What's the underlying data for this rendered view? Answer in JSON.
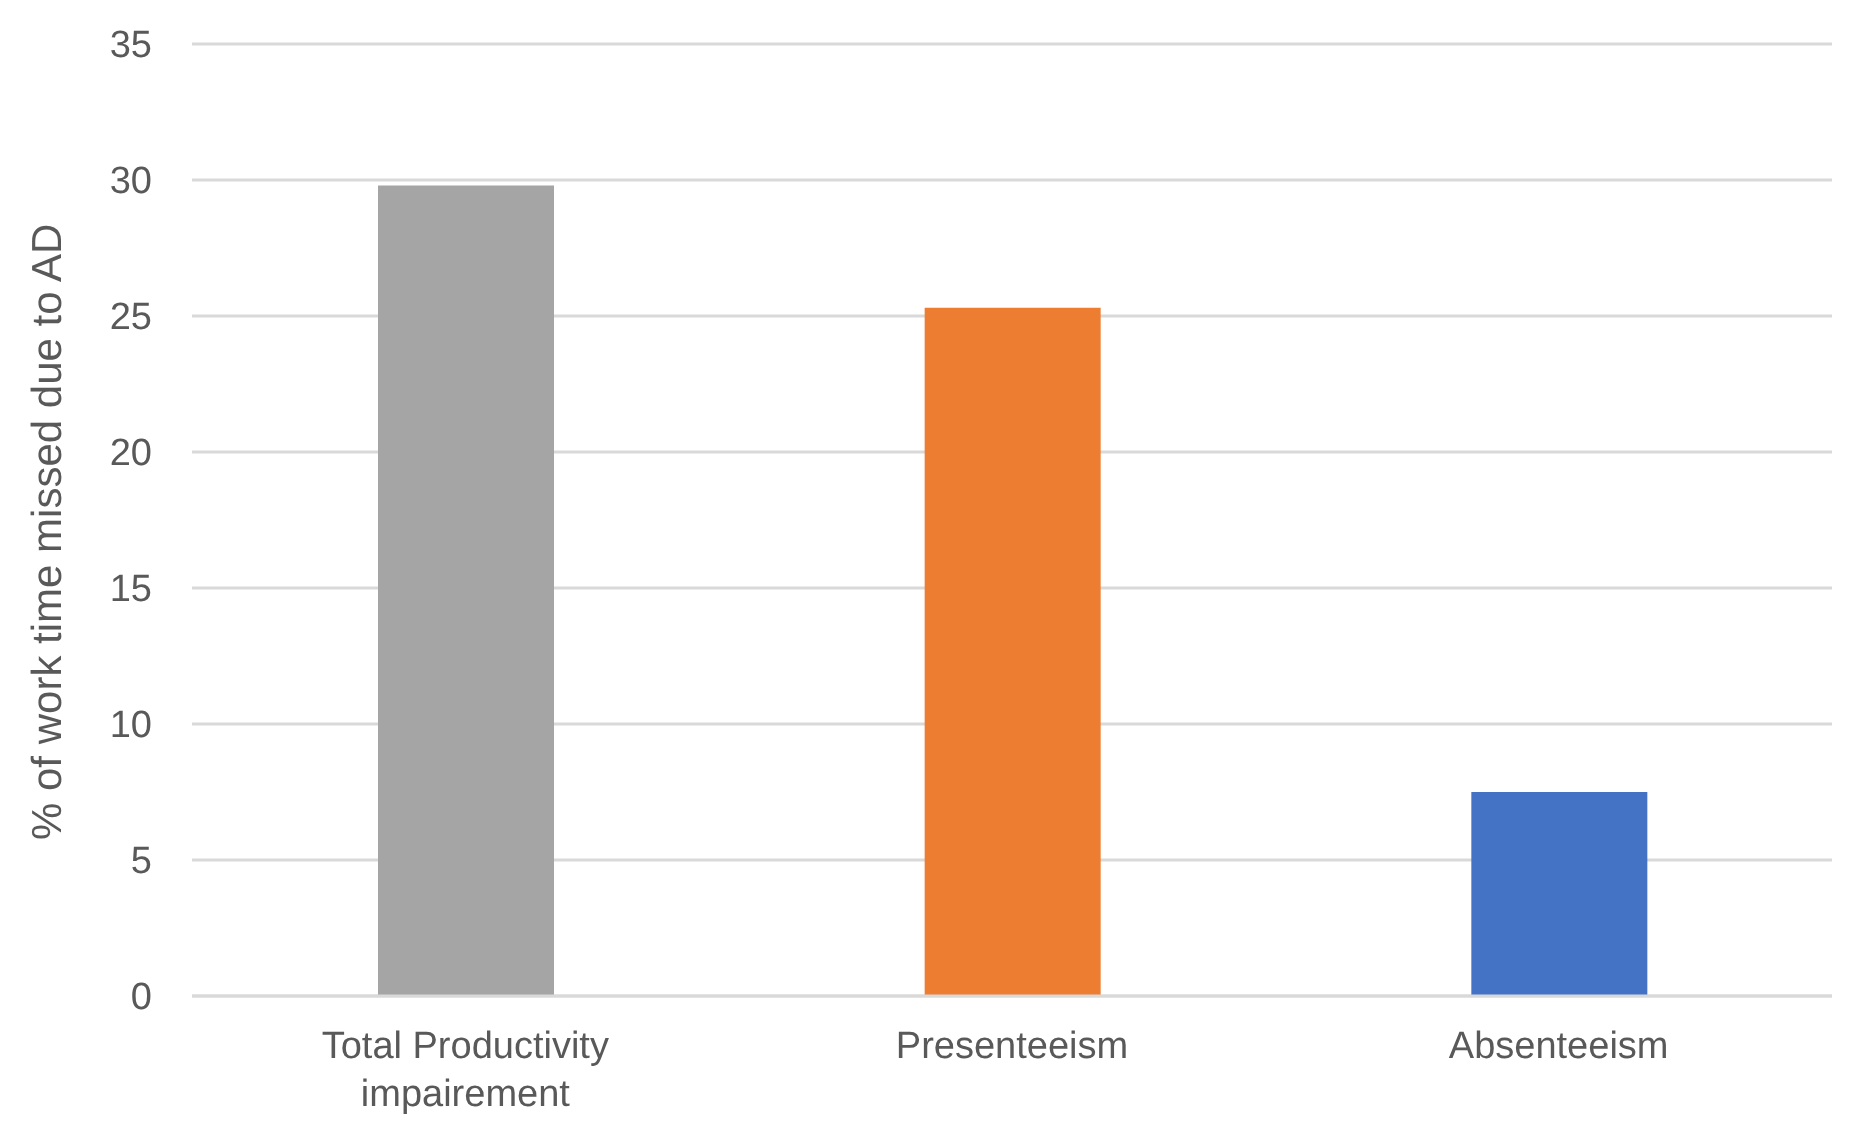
{
  "chart_data": {
    "type": "bar",
    "ylabel": "% of work time missed due to AD",
    "categories": [
      "Total Productivity impairement",
      "Presenteeism",
      "Absenteeism"
    ],
    "values": [
      29.8,
      25.3,
      7.5
    ],
    "colors": [
      "#a5a5a5",
      "#ed7d31",
      "#4472c4"
    ],
    "ylim": [
      0,
      35
    ],
    "yticks": [
      0,
      5,
      10,
      15,
      20,
      25,
      30,
      35
    ],
    "grid": "y",
    "legend": false
  }
}
